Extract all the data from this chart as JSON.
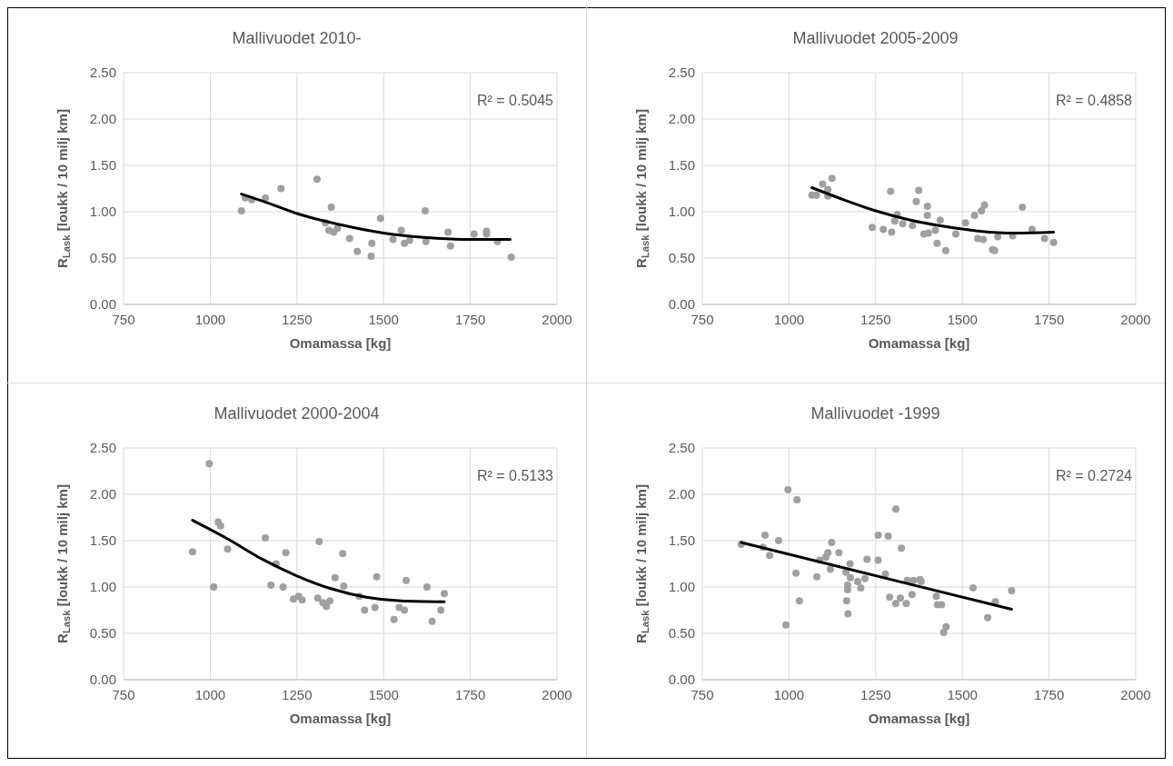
{
  "chart_data": [
    {
      "type": "scatter",
      "title": "Mallivuodet 2010-",
      "xlabel": "Omamassa [kg]",
      "ylabel": "R$_{Lask}$ [loukk / 10 milj km]",
      "annotations": [
        "R² = 0.5045"
      ],
      "xlim": [
        750,
        2000
      ],
      "xticks": [
        750,
        1000,
        1250,
        1500,
        1750,
        2000
      ],
      "ylim": [
        0,
        2.5
      ],
      "yticks": [
        {
          "value": 0,
          "label": "0.00"
        },
        {
          "value": 0.5,
          "label": "0.50"
        },
        {
          "value": 1,
          "label": "1.00"
        },
        {
          "value": 1.5,
          "label": "1.50"
        },
        {
          "value": 2,
          "label": "2.00"
        },
        {
          "value": 2.5,
          "label": "2.50"
        }
      ],
      "grid": true,
      "series": [
        {
          "marker": "circle",
          "color": "#a0a0a0",
          "x": [
            1090,
            1101,
            1120,
            1159,
            1204,
            1308,
            1349,
            1332,
            1342,
            1356,
            1367,
            1402,
            1424,
            1464,
            1466,
            1491,
            1527,
            1551,
            1560,
            1575,
            1620,
            1622,
            1686,
            1693,
            1761,
            1797,
            1797,
            1828,
            1868
          ],
          "values": [
            1.01,
            1.15,
            1.13,
            1.15,
            1.25,
            1.35,
            1.05,
            0.88,
            0.8,
            0.78,
            0.82,
            0.71,
            0.57,
            0.52,
            0.66,
            0.93,
            0.7,
            0.8,
            0.66,
            0.69,
            1.01,
            0.68,
            0.78,
            0.63,
            0.76,
            0.79,
            0.76,
            0.68,
            0.51
          ]
        },
        {
          "type": "line",
          "marker": "none",
          "color": "#000000",
          "x": [
            1090,
            1170,
            1250,
            1375,
            1500,
            1625,
            1750,
            1865
          ],
          "values": [
            1.19,
            1.09,
            0.98,
            0.86,
            0.77,
            0.72,
            0.7,
            0.7
          ]
        }
      ]
    },
    {
      "type": "scatter",
      "title": "Mallivuodet 2005-2009",
      "xlabel": "Omamassa [kg]",
      "ylabel": "R$_{Lask}$ [loukk / 10 milj km]",
      "annotations": [
        "R² = 0.4858"
      ],
      "xlim": [
        750,
        2000
      ],
      "xticks": [
        750,
        1000,
        1250,
        1500,
        1750,
        2000
      ],
      "ylim": [
        0,
        2.5
      ],
      "yticks": [
        {
          "value": 0,
          "label": "0.00"
        },
        {
          "value": 0.5,
          "label": "0.50"
        },
        {
          "value": 1,
          "label": "1.00"
        },
        {
          "value": 1.5,
          "label": "1.50"
        },
        {
          "value": 2,
          "label": "2.00"
        },
        {
          "value": 2.5,
          "label": "2.50"
        }
      ],
      "grid": true,
      "series": [
        {
          "marker": "circle",
          "color": "#a0a0a0",
          "x": [
            1066,
            1079,
            1097,
            1112,
            1124,
            1112,
            1240,
            1272,
            1293,
            1296,
            1305,
            1312,
            1328,
            1356,
            1367,
            1374,
            1389,
            1399,
            1399,
            1402,
            1422,
            1436,
            1427,
            1452,
            1481,
            1509,
            1535,
            1544,
            1560,
            1555,
            1564,
            1587,
            1593,
            1602,
            1645,
            1673,
            1701,
            1737,
            1763
          ],
          "values": [
            1.18,
            1.18,
            1.3,
            1.24,
            1.36,
            1.17,
            0.83,
            0.81,
            1.22,
            0.78,
            0.9,
            0.97,
            0.87,
            0.85,
            1.11,
            1.23,
            0.76,
            1.06,
            0.96,
            0.77,
            0.8,
            0.91,
            0.66,
            0.58,
            0.76,
            0.88,
            0.96,
            0.71,
            0.7,
            1.01,
            1.07,
            0.59,
            0.58,
            0.73,
            0.74,
            1.05,
            0.81,
            0.71,
            0.67
          ]
        },
        {
          "type": "line",
          "marker": "none",
          "color": "#000000",
          "x": [
            1066,
            1150,
            1250,
            1350,
            1450,
            1550,
            1650,
            1763
          ],
          "values": [
            1.26,
            1.14,
            1.01,
            0.91,
            0.84,
            0.79,
            0.77,
            0.78
          ]
        }
      ]
    },
    {
      "type": "scatter",
      "title": "Mallivuodet 2000-2004",
      "xlabel": "Omamassa [kg]",
      "ylabel": "R$_{Lask}$ [loukk / 10 milj km]",
      "annotations": [
        "R² = 0.5133"
      ],
      "xlim": [
        750,
        2000
      ],
      "xticks": [
        750,
        1000,
        1250,
        1500,
        1750,
        2000
      ],
      "ylim": [
        0,
        2.5
      ],
      "yticks": [
        {
          "value": 0,
          "label": "0.00"
        },
        {
          "value": 0.5,
          "label": "0.50"
        },
        {
          "value": 1,
          "label": "1.00"
        },
        {
          "value": 1.5,
          "label": "1.50"
        },
        {
          "value": 2,
          "label": "2.00"
        },
        {
          "value": 2.5,
          "label": "2.50"
        }
      ],
      "grid": true,
      "series": [
        {
          "marker": "circle",
          "color": "#a0a0a0",
          "x": [
            949,
            997,
            1010,
            1023,
            1030,
            1050,
            1159,
            1175,
            1190,
            1210,
            1218,
            1240,
            1255,
            1265,
            1314,
            1310,
            1325,
            1335,
            1345,
            1360,
            1382,
            1385,
            1430,
            1445,
            1475,
            1480,
            1530,
            1545,
            1560,
            1565,
            1625,
            1640,
            1665,
            1675
          ],
          "values": [
            1.38,
            2.33,
            1.0,
            1.7,
            1.66,
            1.41,
            1.53,
            1.02,
            1.25,
            1.0,
            1.37,
            0.87,
            0.9,
            0.86,
            1.49,
            0.88,
            0.83,
            0.79,
            0.85,
            1.1,
            1.36,
            1.01,
            0.9,
            0.75,
            0.78,
            1.11,
            0.65,
            0.78,
            0.75,
            1.07,
            1.0,
            0.63,
            0.75,
            0.93
          ]
        },
        {
          "type": "line",
          "marker": "none",
          "color": "#000000",
          "x": [
            949,
            1050,
            1150,
            1250,
            1350,
            1450,
            1550,
            1675
          ],
          "values": [
            1.72,
            1.52,
            1.3,
            1.12,
            0.98,
            0.89,
            0.85,
            0.84
          ]
        }
      ]
    },
    {
      "type": "scatter",
      "title": "Mallivuodet  -1999",
      "xlabel": "Omamassa [kg]",
      "ylabel": "R$_{Lask}$ [loukk / 10 milj km]",
      "annotations": [
        "R² = 0.2724"
      ],
      "xlim": [
        750,
        2000
      ],
      "xticks": [
        750,
        1000,
        1250,
        1500,
        1750,
        2000
      ],
      "ylim": [
        0,
        2.5
      ],
      "yticks": [
        {
          "value": 0,
          "label": "0.00"
        },
        {
          "value": 0.5,
          "label": "0.50"
        },
        {
          "value": 1,
          "label": "1.00"
        },
        {
          "value": 1.5,
          "label": "1.50"
        },
        {
          "value": 2,
          "label": "2.00"
        },
        {
          "value": 2.5,
          "label": "2.50"
        }
      ],
      "grid": true,
      "series": [
        {
          "marker": "circle",
          "color": "#a0a0a0",
          "x": [
            862,
            931,
            925,
            944,
            970,
            997,
            991,
            1023,
            1020,
            1030,
            1080,
            1088,
            1106,
            1112,
            1123,
            1119,
            1144,
            1164,
            1169,
            1169,
            1166,
            1170,
            1176,
            1177,
            1198,
            1207,
            1219,
            1225,
            1257,
            1257,
            1278,
            1286,
            1290,
            1308,
            1308,
            1321,
            1324,
            1338,
            1341,
            1355,
            1359,
            1378,
            1381,
            1425,
            1428,
            1440,
            1446,
            1453,
            1531,
            1573,
            1595,
            1642
          ],
          "values": [
            1.46,
            1.56,
            1.43,
            1.34,
            1.5,
            2.05,
            0.59,
            1.94,
            1.15,
            0.85,
            1.11,
            1.29,
            1.32,
            1.37,
            1.48,
            1.19,
            1.37,
            1.16,
            1.02,
            0.97,
            0.85,
            0.71,
            1.25,
            1.1,
            1.06,
            0.99,
            1.09,
            1.3,
            1.56,
            1.29,
            1.14,
            1.55,
            0.89,
            1.84,
            0.82,
            0.88,
            1.42,
            0.82,
            1.07,
            0.92,
            1.07,
            1.08,
            1.06,
            0.9,
            0.81,
            0.81,
            0.51,
            0.57,
            0.99,
            0.67,
            0.84,
            0.96
          ]
        },
        {
          "type": "line",
          "marker": "none",
          "color": "#000000",
          "x": [
            862,
            1642
          ],
          "values": [
            1.48,
            0.76
          ]
        }
      ]
    }
  ]
}
